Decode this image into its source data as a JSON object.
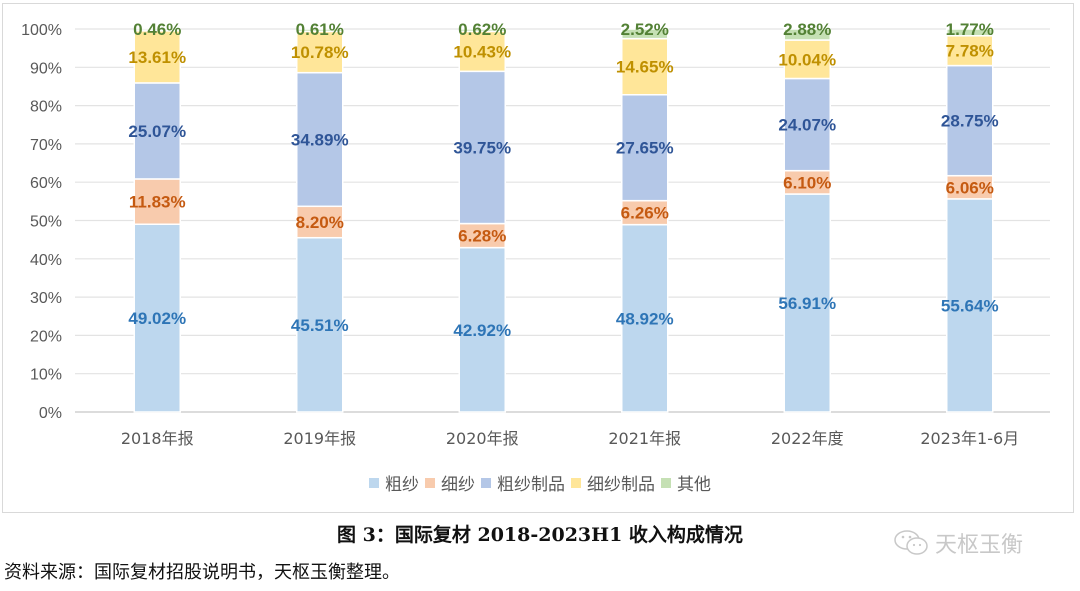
{
  "chart_data": {
    "type": "bar",
    "stacked": true,
    "title": "图 3：国际复材 2018-2023H1 收入构成情况",
    "xlabel": "",
    "ylabel": "",
    "ylim": [
      0,
      100
    ],
    "yticks": [
      "0%",
      "10%",
      "20%",
      "30%",
      "40%",
      "50%",
      "60%",
      "70%",
      "80%",
      "90%",
      "100%"
    ],
    "grid": true,
    "legend_position": "bottom",
    "categories": [
      "2018年报",
      "2019年报",
      "2020年报",
      "2021年报",
      "2022年度",
      "2023年1-6月"
    ],
    "series": [
      {
        "name": "粗纱",
        "color": "#bdd7ee",
        "label_color": "#2e75b6",
        "values": [
          49.02,
          45.51,
          42.92,
          48.92,
          56.91,
          55.64
        ],
        "labels": [
          "49.02%",
          "45.51%",
          "42.92%",
          "48.92%",
          "56.91%",
          "55.64%"
        ]
      },
      {
        "name": "细纱",
        "color": "#f8cbad",
        "label_color": "#c55a11",
        "values": [
          11.83,
          8.2,
          6.28,
          6.26,
          6.1,
          6.06
        ],
        "labels": [
          "11.83%",
          "8.20%",
          "6.28%",
          "6.26%",
          "6.10%",
          "6.06%"
        ]
      },
      {
        "name": "粗纱制品",
        "color": "#b4c7e7",
        "label_color": "#2f5597",
        "values": [
          25.07,
          34.89,
          39.75,
          27.65,
          24.07,
          28.75
        ],
        "labels": [
          "25.07%",
          "34.89%",
          "39.75%",
          "27.65%",
          "24.07%",
          "28.75%"
        ]
      },
      {
        "name": "细纱制品",
        "color": "#ffe699",
        "label_color": "#bf9000",
        "values": [
          13.61,
          10.78,
          10.43,
          14.65,
          10.04,
          7.78
        ],
        "labels": [
          "13.61%",
          "10.78%",
          "10.43%",
          "14.65%",
          "10.04%",
          "7.78%"
        ]
      },
      {
        "name": "其他",
        "color": "#c5e0b4",
        "label_color": "#538135",
        "values": [
          0.46,
          0.61,
          0.62,
          2.52,
          2.88,
          1.77
        ],
        "labels": [
          "0.46%",
          "0.61%",
          "0.62%",
          "2.52%",
          "2.88%",
          "1.77%"
        ]
      }
    ]
  },
  "caption": "图 3：国际复材 2018-2023H1 收入构成情况",
  "source": "资料来源：国际复材招股说明书，天枢玉衡整理。",
  "watermark": "天枢玉衡"
}
